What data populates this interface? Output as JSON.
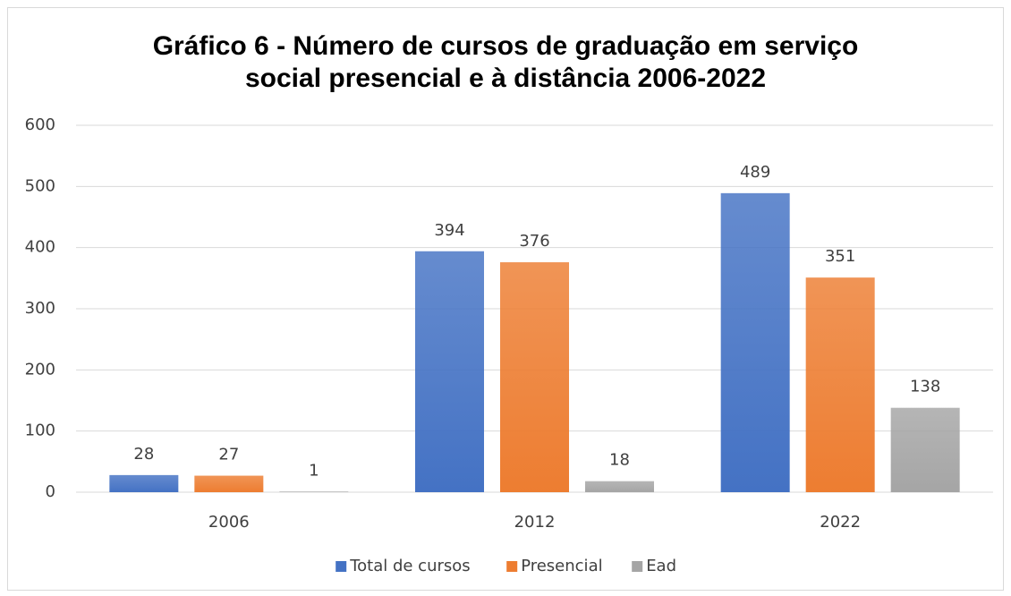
{
  "chart_data": {
    "type": "bar",
    "title": "Gráfico 6 - Número de cursos de graduação em serviço social presencial e à distância 2006-2022",
    "categories": [
      "2006",
      "2012",
      "2022"
    ],
    "series": [
      {
        "name": "Total de cursos",
        "color": "#4472c4",
        "values": [
          28,
          394,
          489
        ]
      },
      {
        "name": "Presencial",
        "color": "#ed7d31",
        "values": [
          27,
          376,
          351
        ]
      },
      {
        "name": "Ead",
        "color": "#a5a5a5",
        "values": [
          1,
          18,
          138
        ]
      }
    ],
    "ylim": [
      0,
      600
    ],
    "yticks": [
      0,
      100,
      200,
      300,
      400,
      500,
      600
    ],
    "grid": true,
    "legend": "bottom"
  }
}
